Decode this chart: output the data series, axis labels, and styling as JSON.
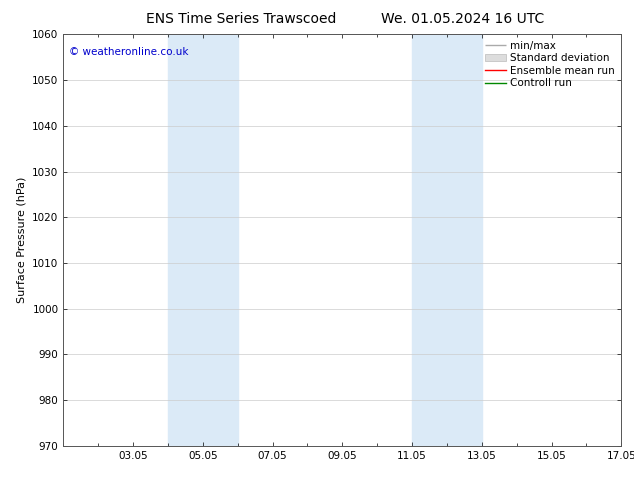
{
  "title_left": "ENS Time Series Trawscoed",
  "title_right": "We. 01.05.2024 16 UTC",
  "ylabel": "Surface Pressure (hPa)",
  "ylim": [
    970,
    1060
  ],
  "yticks": [
    970,
    980,
    990,
    1000,
    1010,
    1020,
    1030,
    1040,
    1050,
    1060
  ],
  "xlim_start": 1,
  "xlim_end": 17,
  "xtick_labels": [
    "03.05",
    "05.05",
    "07.05",
    "09.05",
    "11.05",
    "13.05",
    "15.05",
    "17.05"
  ],
  "xtick_positions": [
    3,
    5,
    7,
    9,
    11,
    13,
    15,
    17
  ],
  "shade_bands": [
    {
      "xmin": 4.0,
      "xmax": 6.0
    },
    {
      "xmin": 11.0,
      "xmax": 13.0
    }
  ],
  "shade_color": "#dbeaf7",
  "copyright_text": "© weatheronline.co.uk",
  "copyright_color": "#0000cc",
  "legend_items": [
    {
      "label": "min/max",
      "color": "#aaaaaa",
      "lw": 1.0
    },
    {
      "label": "Standard deviation",
      "color": "#cccccc",
      "lw": 5
    },
    {
      "label": "Ensemble mean run",
      "color": "#ff0000",
      "lw": 1.0
    },
    {
      "label": "Controll run",
      "color": "#008800",
      "lw": 1.0
    }
  ],
  "bg_color": "#ffffff",
  "grid_color": "#cccccc",
  "title_fontsize": 10,
  "tick_fontsize": 7.5,
  "ylabel_fontsize": 8,
  "legend_fontsize": 7.5
}
